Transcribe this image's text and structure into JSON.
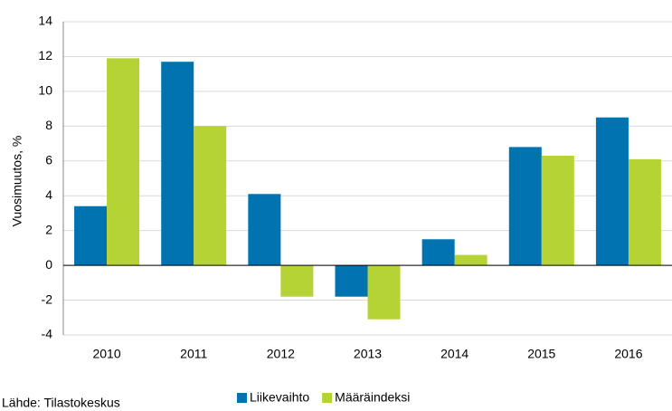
{
  "chart_data": {
    "type": "bar",
    "y_label": "Vuosimuutos, %",
    "source": "Lähde: Tilastokeskus",
    "categories": [
      "2010",
      "2011",
      "2012",
      "2013",
      "2014",
      "2015",
      "2016"
    ],
    "series": [
      {
        "name": "Liikevaihto",
        "color": "#0073b0",
        "values": [
          3.4,
          11.7,
          4.1,
          -1.8,
          1.5,
          6.8,
          8.5
        ]
      },
      {
        "name": "Määräindeksi",
        "color": "#b5d334",
        "values": [
          11.9,
          8.0,
          -1.8,
          -3.1,
          0.6,
          6.3,
          6.1
        ]
      }
    ],
    "ylim": [
      -4,
      14
    ],
    "yticks": [
      -4,
      -2,
      0,
      2,
      4,
      6,
      8,
      10,
      12,
      14
    ],
    "grid": true,
    "legend": "bottom"
  }
}
